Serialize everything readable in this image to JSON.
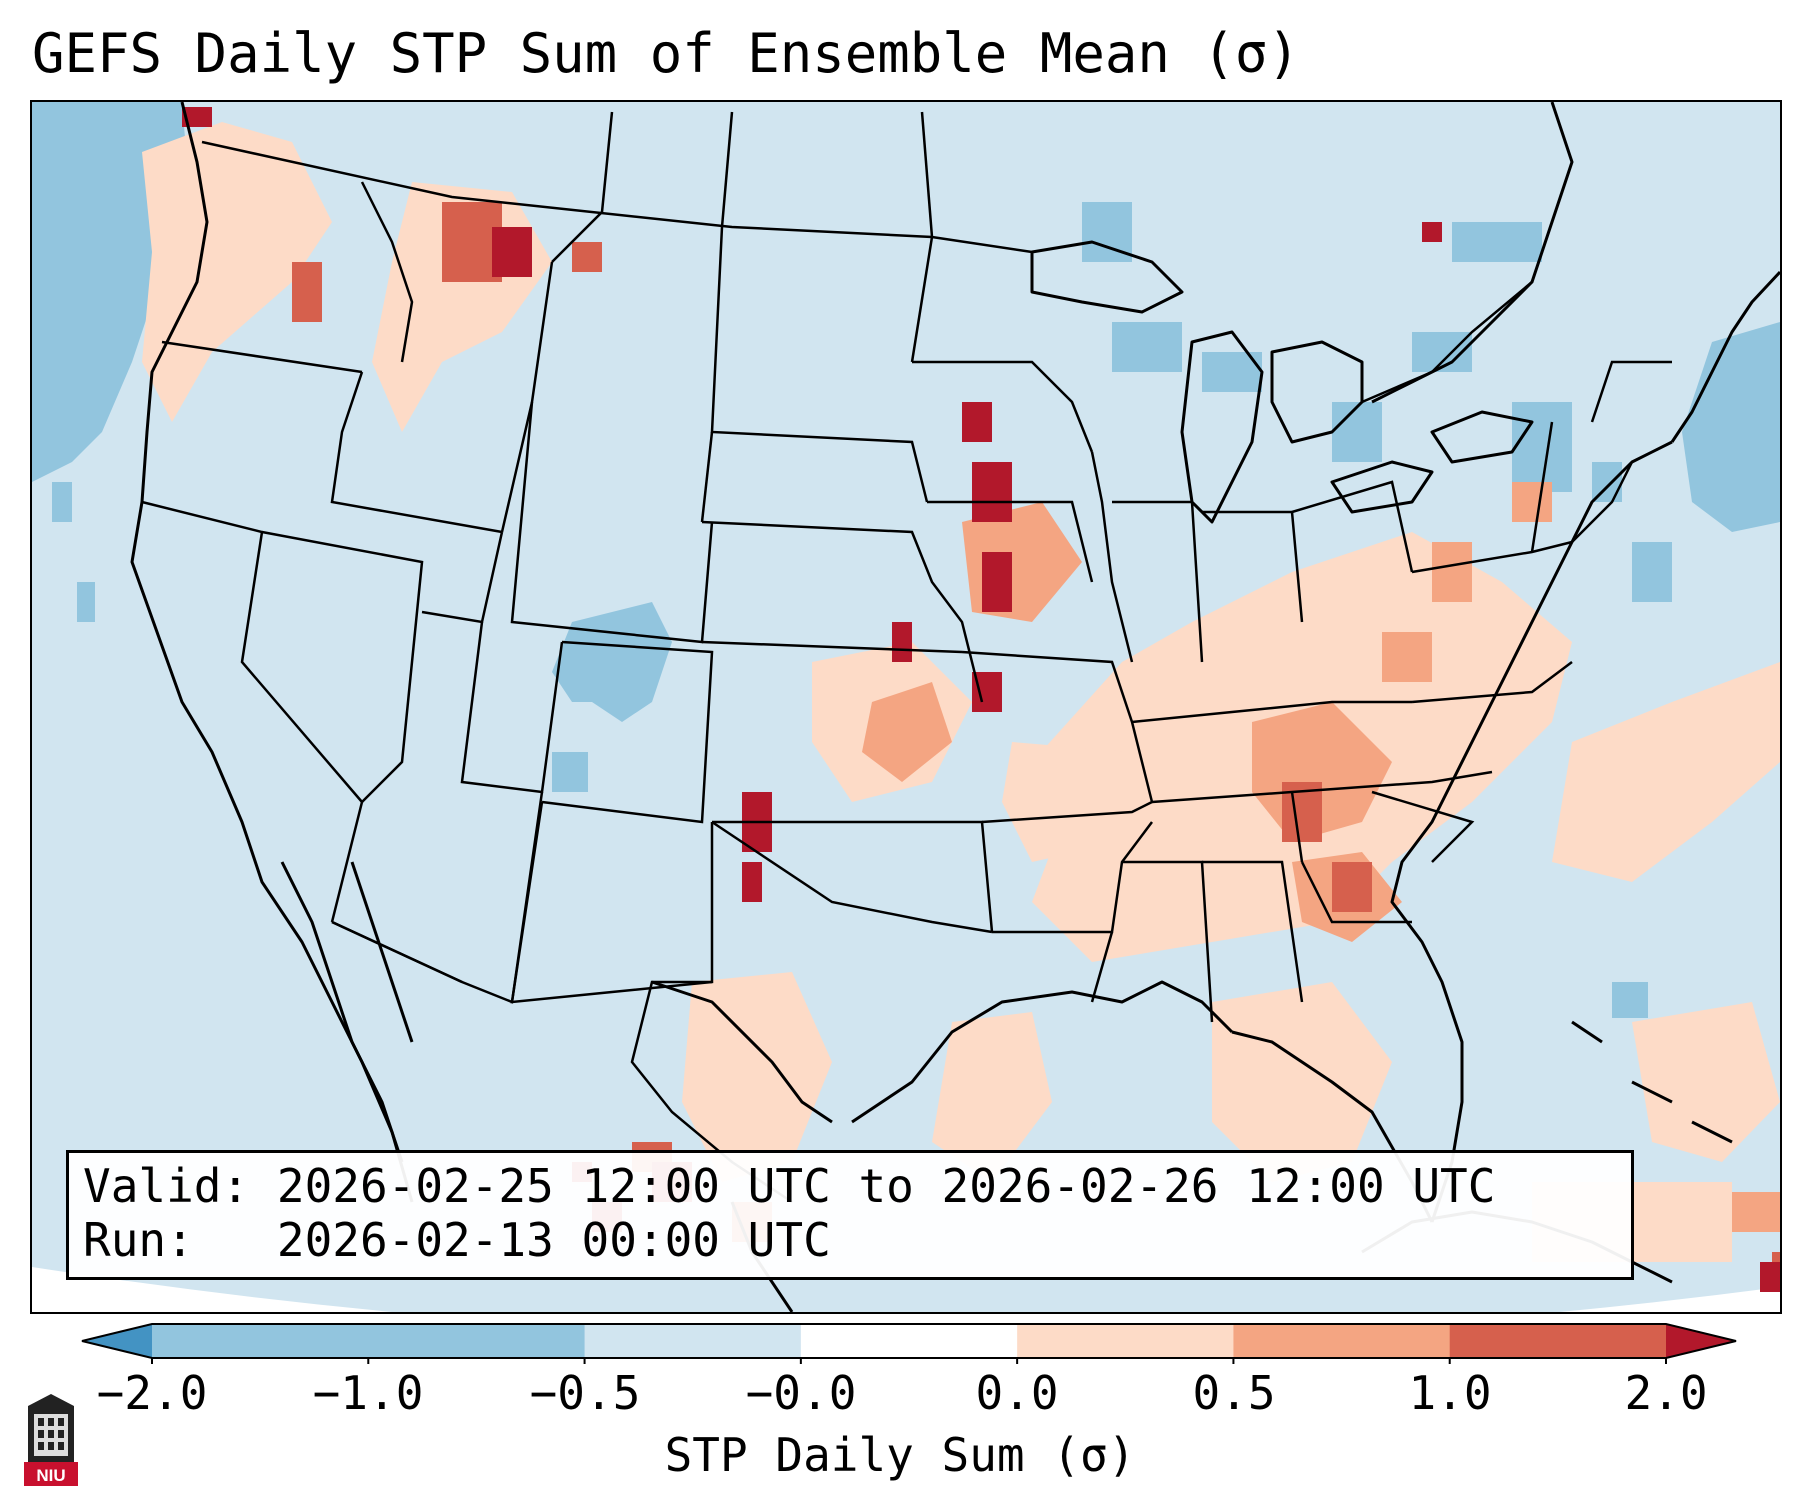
{
  "title": "GEFS Daily STP Sum of Ensemble Mean (σ)",
  "info": {
    "valid_label": "Valid:",
    "valid_value": "2026-02-25 12:00 UTC to 2026-02-26 12:00 UTC",
    "run_label": "Run:",
    "run_value": "2026-02-13 00:00 UTC"
  },
  "colorbar": {
    "label": "STP Daily Sum (σ)",
    "ticks": [
      "−2.0",
      "−1.0",
      "−0.5",
      "−0.0",
      "0.0",
      "0.5",
      "1.0",
      "2.0"
    ],
    "colors": [
      "#4393c3",
      "#92c5de",
      "#d1e5f0",
      "#ffffff",
      "#fddbc7",
      "#f4a582",
      "#d6604d",
      "#b2182b"
    ],
    "extend": "both"
  },
  "logo": {
    "text": "NIU",
    "icon": "university-tower-icon"
  },
  "map": {
    "region": "Continental United States",
    "background_category": "-0.5 to -0.0",
    "hotspots": [
      {
        "region": "Pacific Northwest",
        "category": "1.0 to 2.0"
      },
      {
        "region": "Iowa / Missouri",
        "category": "above 2.0"
      },
      {
        "region": "Tennessee Valley / Southeast",
        "category": "0.5 to 1.0"
      },
      {
        "region": "West Texas",
        "category": "above 2.0"
      },
      {
        "region": "Northern Mexico",
        "category": "above 2.0"
      }
    ]
  }
}
